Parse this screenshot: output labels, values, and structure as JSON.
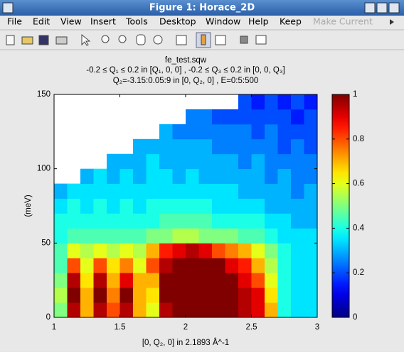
{
  "window": {
    "title": "Figure 1: Horace_2D",
    "menu": [
      "File",
      "Edit",
      "View",
      "Insert",
      "Tools",
      "Desktop",
      "Window",
      "Help",
      "Keep",
      "Make Current"
    ]
  },
  "chart_data": {
    "type": "heatmap",
    "title": [
      "fe_test.sqw",
      "-0.2 ≤ Q₁ ≤ 0.2 in [Q₁, 0, 0] , -0.2 ≤ Q₃ ≤ 0.2 in [0, 0, Q₃]",
      "Q₂=-3.15:0.05:9 in [0, Q₂, 0] , E=0:5:500"
    ],
    "xlabel": "[0, Q₂, 0] in 2.1893 Å^-1",
    "ylabel": "(meV)",
    "xbins": [
      1,
      1.1,
      1.2,
      1.3,
      1.4,
      1.5,
      1.6,
      1.7,
      1.8,
      1.9,
      2,
      2.1,
      2.2,
      2.3,
      2.4,
      2.5,
      2.6,
      2.7,
      2.8,
      2.9,
      3
    ],
    "ybins": [
      0,
      10,
      20,
      30,
      40,
      50,
      60,
      70,
      80,
      90,
      100,
      110,
      120,
      130,
      140,
      150
    ],
    "z": [
      [
        0.5,
        0.95,
        0.7,
        0.95,
        0.8,
        0.95,
        0.7,
        0.6,
        0.95,
        1,
        1,
        1,
        1,
        1,
        0.95,
        0.9,
        0.7,
        0.4,
        0.35,
        0.35
      ],
      [
        0.55,
        1,
        0.7,
        1,
        0.75,
        1,
        0.7,
        0.65,
        1,
        1,
        1,
        1,
        1,
        1,
        0.95,
        0.9,
        0.65,
        0.4,
        0.35,
        0.35
      ],
      [
        0.5,
        0.95,
        0.65,
        0.95,
        0.7,
        0.9,
        0.7,
        0.7,
        1,
        1,
        1,
        1,
        1,
        1,
        0.9,
        0.8,
        0.6,
        0.4,
        0.35,
        0.35
      ],
      [
        0.45,
        0.8,
        0.6,
        0.8,
        0.65,
        0.75,
        0.6,
        0.8,
        0.95,
        1,
        1,
        1,
        1,
        0.9,
        0.85,
        0.7,
        0.55,
        0.4,
        0.35,
        0.35
      ],
      [
        0.45,
        0.6,
        0.55,
        0.6,
        0.55,
        0.6,
        0.55,
        0.7,
        0.85,
        0.9,
        0.95,
        0.9,
        0.8,
        0.75,
        0.7,
        0.6,
        0.5,
        0.4,
        0.35,
        0.35
      ],
      [
        0.4,
        0.45,
        0.45,
        0.45,
        0.45,
        0.45,
        0.45,
        0.5,
        0.5,
        0.55,
        0.55,
        0.5,
        0.5,
        0.5,
        0.45,
        0.45,
        0.4,
        0.35,
        0.35,
        0.35
      ],
      [
        0.4,
        0.4,
        0.4,
        0.4,
        0.4,
        0.4,
        0.4,
        0.4,
        0.45,
        0.45,
        0.45,
        0.45,
        0.4,
        0.4,
        0.4,
        0.4,
        0.35,
        0.35,
        0.3,
        0.3
      ],
      [
        0.35,
        0.4,
        0.35,
        0.4,
        0.35,
        0.4,
        0.35,
        0.4,
        0.4,
        0.4,
        0.4,
        0.4,
        0.35,
        0.35,
        0.35,
        0.35,
        0.3,
        0.3,
        0.3,
        0.3
      ],
      [
        0.3,
        0.35,
        0.35,
        0.35,
        0.35,
        0.35,
        0.35,
        0.35,
        0.35,
        0.35,
        0.35,
        0.35,
        0.35,
        0.35,
        0.3,
        0.3,
        0.3,
        0.3,
        0.25,
        0.3
      ],
      [
        null,
        null,
        0.3,
        0.35,
        0.3,
        0.35,
        0.3,
        0.35,
        0.35,
        0.3,
        0.35,
        0.3,
        0.3,
        0.3,
        0.3,
        0.3,
        0.25,
        0.3,
        0.25,
        0.25
      ],
      [
        null,
        null,
        null,
        null,
        0.3,
        0.3,
        0.3,
        0.35,
        0.3,
        0.3,
        0.3,
        0.3,
        0.3,
        0.3,
        0.25,
        0.3,
        0.25,
        0.25,
        0.25,
        0.25
      ],
      [
        null,
        null,
        null,
        null,
        null,
        null,
        0.3,
        0.3,
        0.3,
        0.3,
        0.3,
        0.3,
        0.25,
        0.25,
        0.25,
        0.25,
        0.25,
        0.2,
        0.25,
        0.2
      ],
      [
        null,
        null,
        null,
        null,
        null,
        null,
        null,
        null,
        0.3,
        0.25,
        0.25,
        0.25,
        0.25,
        0.25,
        0.25,
        0.2,
        0.25,
        0.2,
        0.2,
        0.2
      ],
      [
        null,
        null,
        null,
        null,
        null,
        null,
        null,
        null,
        null,
        null,
        0.25,
        0.25,
        0.2,
        0.2,
        0.2,
        0.2,
        0.2,
        0.2,
        0.15,
        0.2
      ],
      [
        null,
        null,
        null,
        null,
        null,
        null,
        null,
        null,
        null,
        null,
        null,
        null,
        null,
        null,
        0.2,
        0.15,
        0.2,
        0.15,
        0.2,
        0.15
      ]
    ],
    "xlim": [
      1,
      3
    ],
    "ylim": [
      0,
      150
    ],
    "xticks": [
      1,
      1.5,
      2,
      2.5,
      3
    ],
    "yticks": [
      0,
      50,
      100,
      150
    ],
    "colormap": "jet",
    "clim": [
      0,
      1
    ],
    "cticks": [
      0,
      0.2,
      0.4,
      0.6,
      0.8,
      1
    ]
  }
}
